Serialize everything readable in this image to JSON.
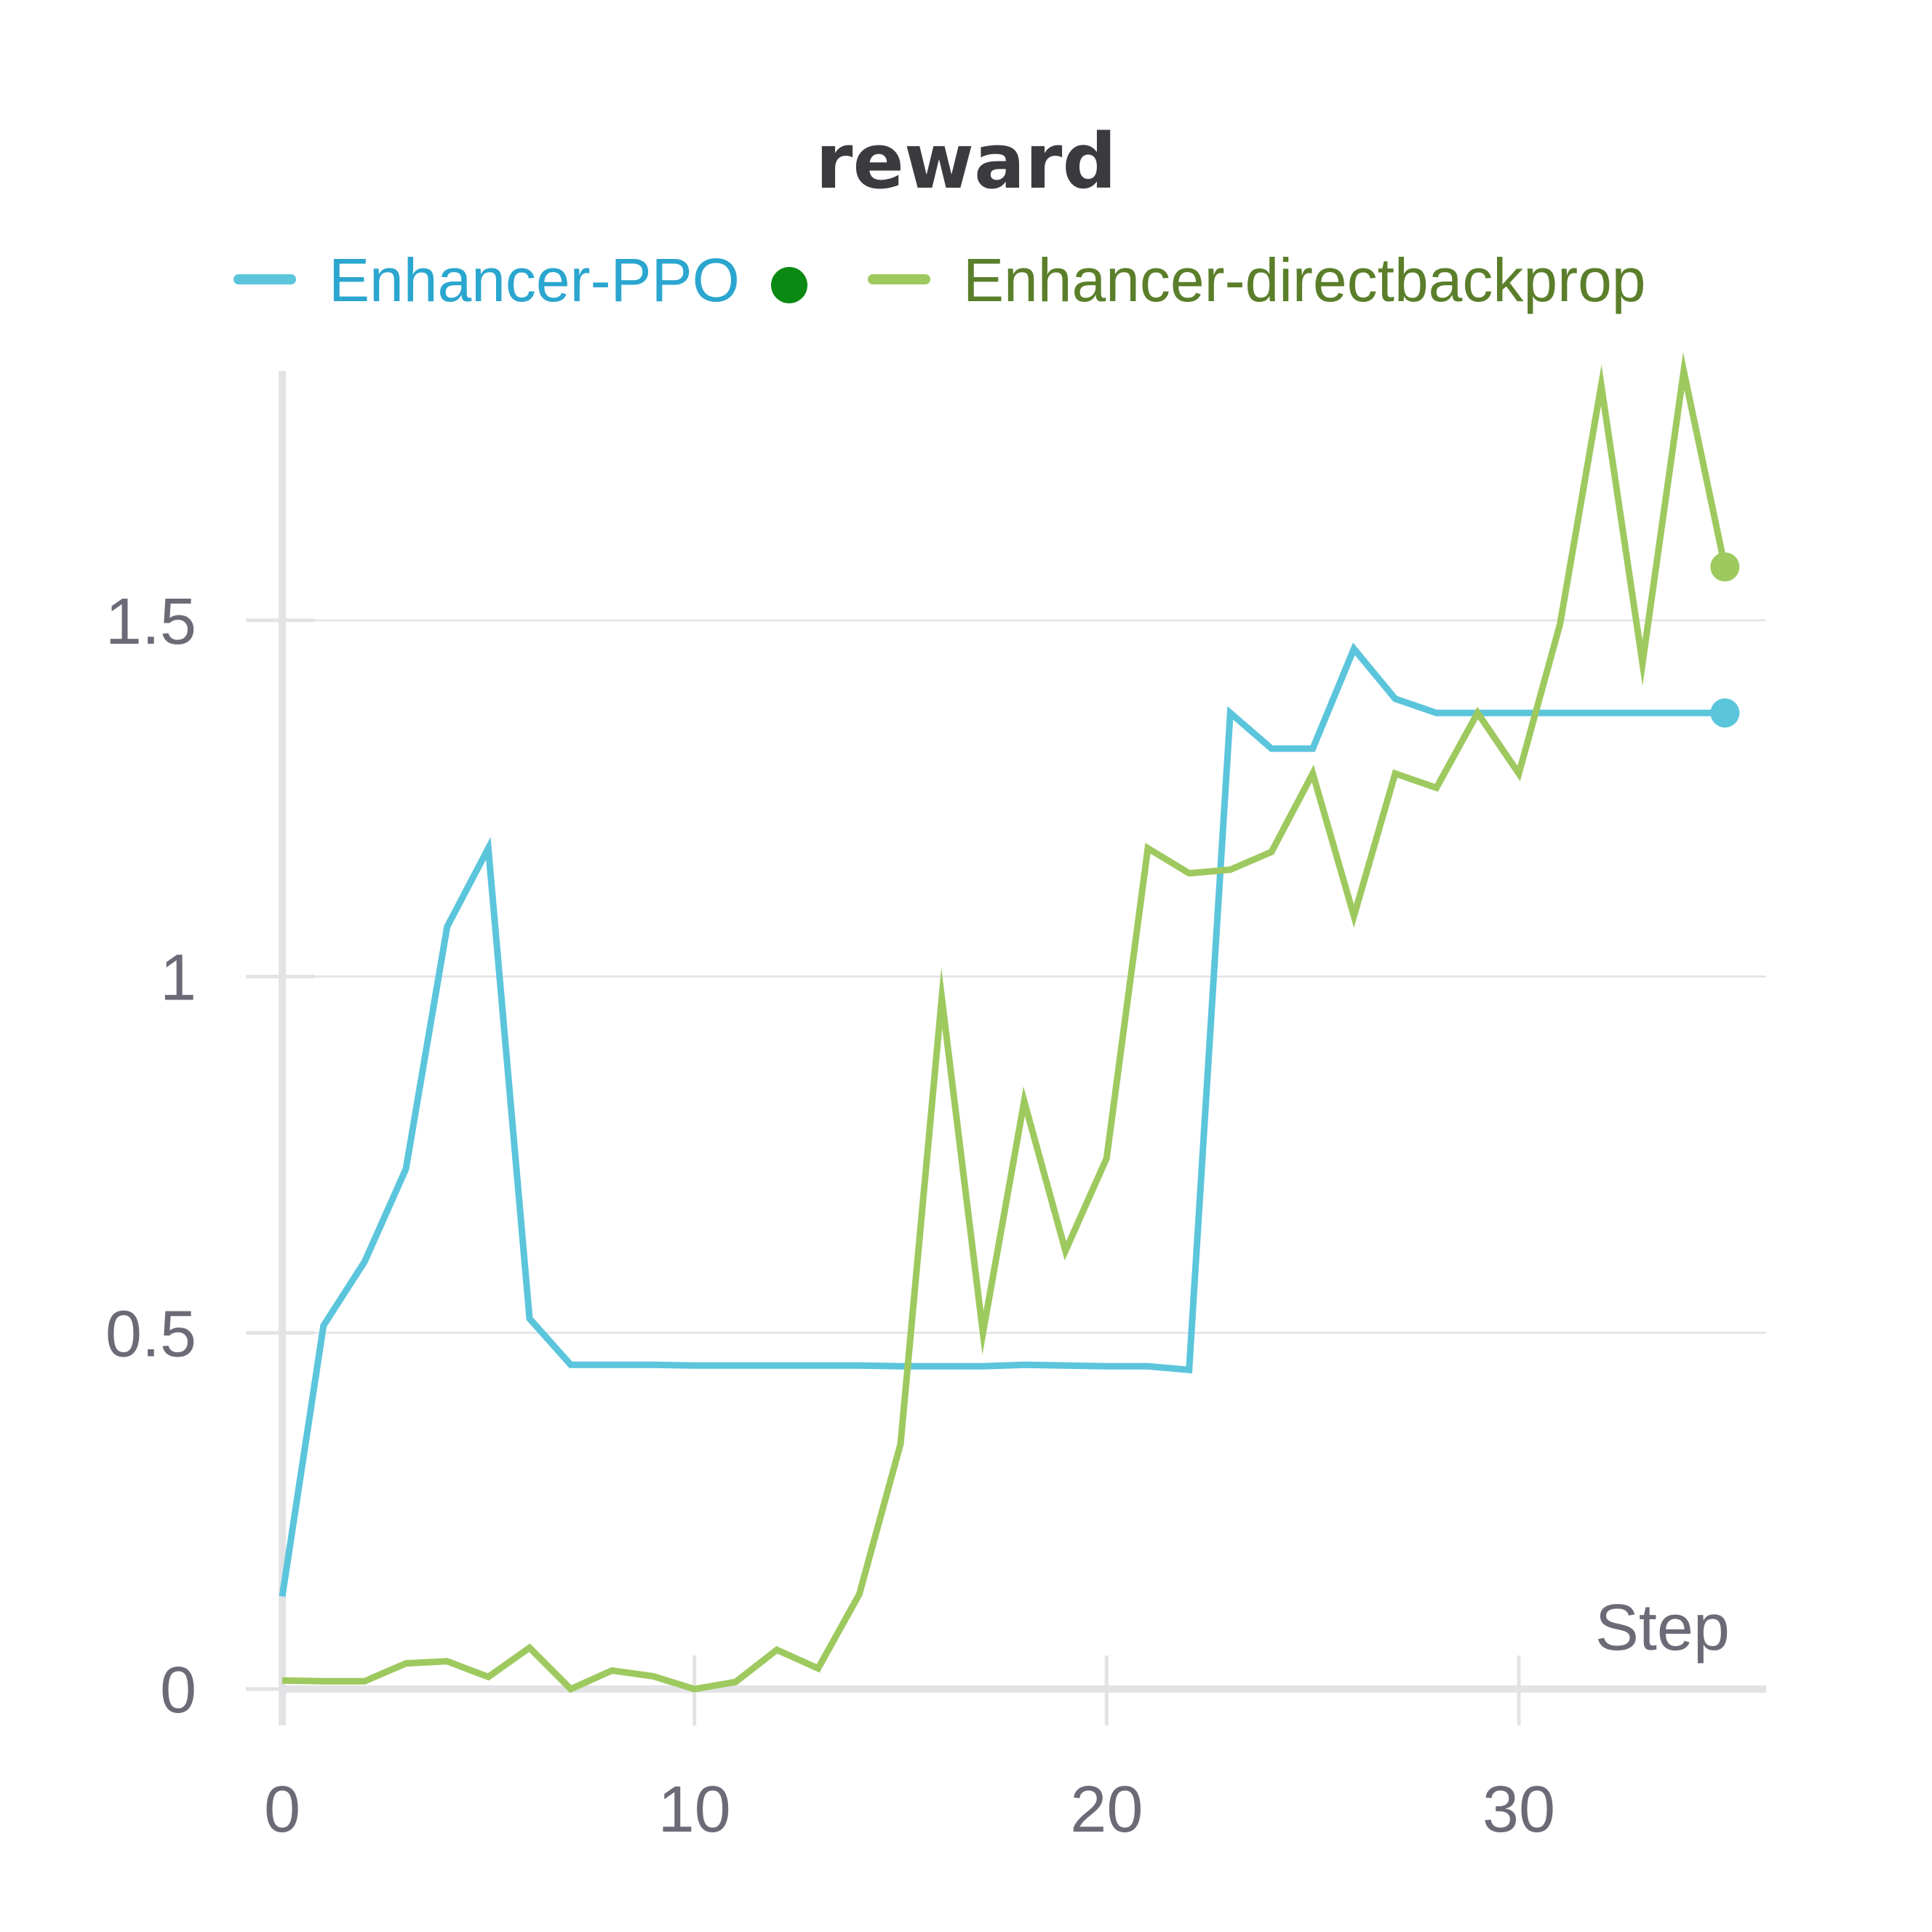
{
  "chart_data": {
    "type": "line",
    "title": "reward",
    "xlabel": "Step",
    "ylabel": "",
    "xlim": [
      0,
      36
    ],
    "ylim": [
      0,
      1.85
    ],
    "x_ticks": [
      "0",
      "10",
      "20",
      "30"
    ],
    "y_ticks": [
      "0",
      "0.5",
      "1",
      "1.5"
    ],
    "grid": true,
    "legend_position": "top",
    "series": [
      {
        "name": "Enhancer-PPO",
        "color": "#5bc5dc",
        "label_color": "#2aa6cf",
        "marker_color": "#0a8a12",
        "x": [
          0,
          1,
          2,
          3,
          4,
          5,
          6,
          7,
          8,
          9,
          10,
          11,
          12,
          13,
          14,
          15,
          16,
          17,
          18,
          19,
          20,
          21,
          22,
          23,
          24,
          25,
          26,
          27,
          28,
          29,
          30,
          31,
          32,
          33,
          34,
          35
        ],
        "y": [
          0.13,
          0.51,
          0.6,
          0.73,
          1.07,
          1.18,
          0.52,
          0.455,
          0.455,
          0.455,
          0.454,
          0.454,
          0.454,
          0.454,
          0.454,
          0.453,
          0.453,
          0.453,
          0.455,
          0.454,
          0.453,
          0.453,
          0.448,
          1.37,
          1.32,
          1.32,
          1.46,
          1.39,
          1.37,
          1.37,
          1.37,
          1.37,
          1.37,
          1.37,
          1.37,
          1.37
        ]
      },
      {
        "name": "Enhancer-directbackprop",
        "color": "#9ec95f",
        "label_color": "#5a7e2a",
        "x": [
          0,
          1,
          2,
          3,
          4,
          5,
          6,
          7,
          8,
          9,
          10,
          11,
          12,
          13,
          14,
          15,
          16,
          17,
          18,
          19,
          20,
          21,
          22,
          23,
          24,
          25,
          26,
          27,
          28,
          29,
          30,
          31,
          32,
          33,
          34,
          35
        ],
        "y": [
          0.012,
          0.011,
          0.011,
          0.036,
          0.039,
          0.017,
          0.058,
          0,
          0.026,
          0.018,
          0,
          0.01,
          0.055,
          0.029,
          0.133,
          0.344,
          0.97,
          0.5,
          0.825,
          0.615,
          0.745,
          1.18,
          1.145,
          1.15,
          1.175,
          1.285,
          1.085,
          1.285,
          1.265,
          1.37,
          1.285,
          1.495,
          1.83,
          1.44,
          1.85,
          1.575
        ]
      }
    ]
  }
}
